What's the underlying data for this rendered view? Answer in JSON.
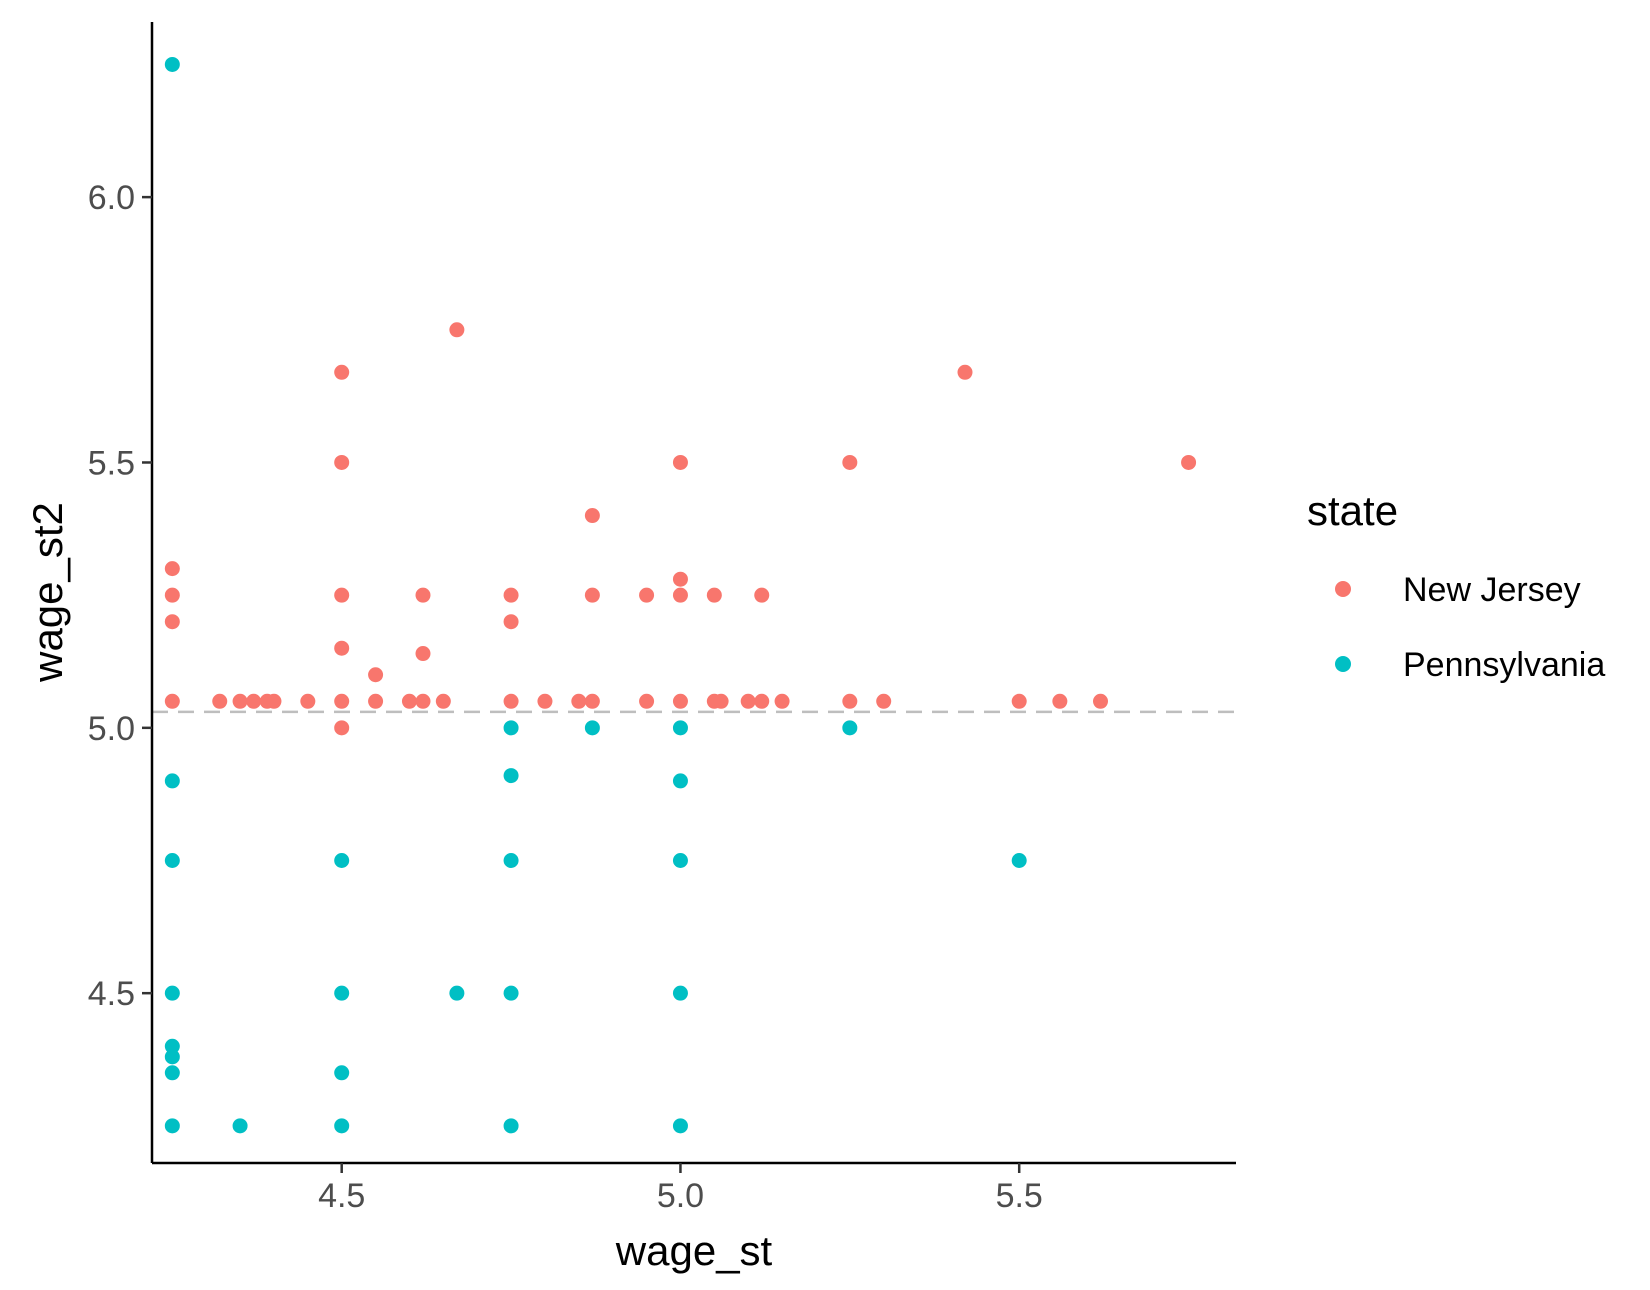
{
  "chart_data": {
    "type": "scatter",
    "xlabel": "wage_st",
    "ylabel": "wage_st2",
    "xlim": [
      4.22,
      5.82
    ],
    "ylim": [
      4.18,
      6.33
    ],
    "x_ticks": [
      "4.5",
      "5.0",
      "5.5"
    ],
    "y_ticks": [
      "4.5",
      "5.0",
      "5.5",
      "6.0"
    ],
    "grid": false,
    "legend": {
      "title": "state",
      "placement": "right",
      "entries": [
        "New Jersey",
        "Pennsylvania"
      ]
    },
    "reference_line": {
      "orientation": "horizontal",
      "y": 5.03,
      "style": "dashed",
      "color": "#bebebe"
    },
    "series": [
      {
        "name": "New Jersey",
        "color": "#F8766D",
        "points": [
          [
            4.25,
            5.3
          ],
          [
            4.25,
            5.25
          ],
          [
            4.25,
            5.2
          ],
          [
            4.25,
            5.05
          ],
          [
            4.32,
            5.05
          ],
          [
            4.35,
            5.05
          ],
          [
            4.37,
            5.05
          ],
          [
            4.39,
            5.05
          ],
          [
            4.4,
            5.05
          ],
          [
            4.45,
            5.05
          ],
          [
            4.5,
            5.67
          ],
          [
            4.5,
            5.5
          ],
          [
            4.5,
            5.25
          ],
          [
            4.5,
            5.15
          ],
          [
            4.5,
            5.05
          ],
          [
            4.5,
            5.0
          ],
          [
            4.55,
            5.1
          ],
          [
            4.55,
            5.05
          ],
          [
            4.6,
            5.05
          ],
          [
            4.62,
            5.25
          ],
          [
            4.62,
            5.14
          ],
          [
            4.62,
            5.05
          ],
          [
            4.65,
            5.05
          ],
          [
            4.67,
            5.75
          ],
          [
            4.75,
            5.25
          ],
          [
            4.75,
            5.2
          ],
          [
            4.75,
            5.05
          ],
          [
            4.8,
            5.05
          ],
          [
            4.85,
            5.05
          ],
          [
            4.87,
            5.4
          ],
          [
            4.87,
            5.25
          ],
          [
            4.87,
            5.05
          ],
          [
            4.95,
            5.25
          ],
          [
            4.95,
            5.05
          ],
          [
            5.0,
            5.5
          ],
          [
            5.0,
            5.28
          ],
          [
            5.0,
            5.25
          ],
          [
            5.0,
            5.05
          ],
          [
            5.05,
            5.25
          ],
          [
            5.05,
            5.05
          ],
          [
            5.06,
            5.05
          ],
          [
            5.1,
            5.05
          ],
          [
            5.12,
            5.25
          ],
          [
            5.12,
            5.05
          ],
          [
            5.15,
            5.05
          ],
          [
            5.25,
            5.5
          ],
          [
            5.25,
            5.05
          ],
          [
            5.3,
            5.05
          ],
          [
            5.42,
            5.67
          ],
          [
            5.5,
            5.05
          ],
          [
            5.56,
            5.05
          ],
          [
            5.62,
            5.05
          ],
          [
            5.75,
            5.5
          ]
        ]
      },
      {
        "name": "Pennsylvania",
        "color": "#00BFC4",
        "points": [
          [
            4.25,
            6.25
          ],
          [
            4.25,
            4.9
          ],
          [
            4.25,
            4.75
          ],
          [
            4.25,
            4.5
          ],
          [
            4.25,
            4.4
          ],
          [
            4.25,
            4.38
          ],
          [
            4.25,
            4.35
          ],
          [
            4.25,
            4.25
          ],
          [
            4.35,
            4.25
          ],
          [
            4.5,
            4.75
          ],
          [
            4.5,
            4.5
          ],
          [
            4.5,
            4.35
          ],
          [
            4.5,
            4.25
          ],
          [
            4.67,
            4.5
          ],
          [
            4.75,
            5.0
          ],
          [
            4.75,
            4.91
          ],
          [
            4.75,
            4.75
          ],
          [
            4.75,
            4.5
          ],
          [
            4.75,
            4.25
          ],
          [
            4.87,
            5.0
          ],
          [
            5.0,
            5.0
          ],
          [
            5.0,
            4.9
          ],
          [
            5.0,
            4.75
          ],
          [
            5.0,
            4.5
          ],
          [
            5.0,
            4.25
          ],
          [
            5.25,
            5.0
          ],
          [
            5.5,
            4.75
          ]
        ]
      }
    ]
  }
}
